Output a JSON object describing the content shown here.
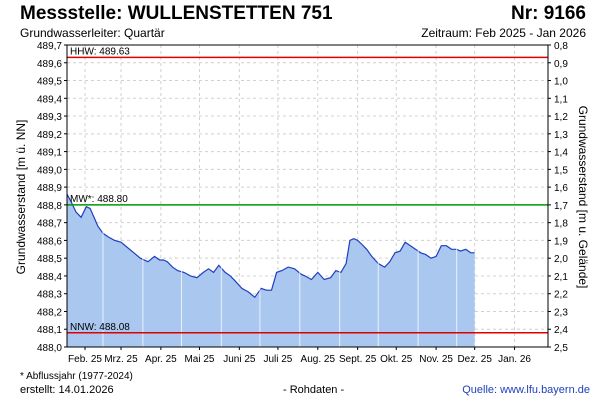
{
  "header": {
    "title": "Messstelle: WULLENSTETTEN 751",
    "number": "Nr: 9166",
    "subtitle_left": "Grundwasserleiter: Quartär",
    "subtitle_right": "Zeitraum: Feb 2025 - Jan 2026"
  },
  "footer": {
    "note": "* Abflussjahr (1977-2024)",
    "created": "erstellt:  14.01.2026",
    "center": "- Rohdaten -",
    "source": "Quelle:  www.lfu.bayern.de"
  },
  "colors": {
    "fill": "#a9c7ef",
    "line": "#1f3fbf",
    "hhw": "#e00000",
    "mw": "#009900",
    "nnw": "#e00000",
    "grid": "#d0d0d0"
  },
  "chart_data": {
    "type": "area",
    "ylabel": "Grundwasserstand [m ü. NN]",
    "ylabel_right": "Grundwasserstand [m u. Gelände]",
    "ylim": [
      488.0,
      489.7
    ],
    "yticks": [
      "489,7",
      "489,6",
      "489,5",
      "489,4",
      "489,3",
      "489,2",
      "489,1",
      "489,0",
      "488,9",
      "488,8",
      "488,7",
      "488,6",
      "488,5",
      "488,4",
      "488,3",
      "488,2",
      "488,1",
      "488,0"
    ],
    "yticks_right": [
      "0,8",
      "0,9",
      "1,0",
      "1,1",
      "1,2",
      "1,3",
      "1,4",
      "1,5",
      "1,6",
      "1,7",
      "1,8",
      "1,9",
      "2,0",
      "2,1",
      "2,2",
      "2,3",
      "2,4",
      "2,5"
    ],
    "xlim": [
      "2025-02-01",
      "2026-02-10"
    ],
    "xticks": [
      {
        "label": "Feb. 25",
        "date": "2025-02-15"
      },
      {
        "label": "Mrz. 25",
        "date": "2025-03-15"
      },
      {
        "label": "Apr. 25",
        "date": "2025-04-15"
      },
      {
        "label": "Mai 25",
        "date": "2025-05-15"
      },
      {
        "label": "Juni 25",
        "date": "2025-06-15"
      },
      {
        "label": "Juli 25",
        "date": "2025-07-15"
      },
      {
        "label": "Aug. 25",
        "date": "2025-08-15"
      },
      {
        "label": "Sept. 25",
        "date": "2025-09-15"
      },
      {
        "label": "Okt. 25",
        "date": "2025-10-15"
      },
      {
        "label": "Nov. 25",
        "date": "2025-11-15"
      },
      {
        "label": "Dez. 25",
        "date": "2025-12-15"
      },
      {
        "label": "Jan. 26",
        "date": "2026-01-15"
      }
    ],
    "month_dividers": [
      "2025-03-01",
      "2025-04-01",
      "2025-05-01",
      "2025-06-01",
      "2025-07-01",
      "2025-08-01",
      "2025-09-01",
      "2025-10-01",
      "2025-11-01",
      "2025-12-01"
    ],
    "grid": true,
    "reference_lines": [
      {
        "label": "HHW: 489.63",
        "value": 489.63,
        "color": "#e00000"
      },
      {
        "label": "MW*: 488.80",
        "value": 488.8,
        "color": "#009900"
      },
      {
        "label": "NNW: 488.08",
        "value": 488.08,
        "color": "#e00000"
      }
    ],
    "series": [
      {
        "x": [
          "2025-02-01",
          "2025-02-04",
          "2025-02-08",
          "2025-02-12",
          "2025-02-16",
          "2025-02-19",
          "2025-02-22",
          "2025-02-25",
          "2025-03-01",
          "2025-03-05",
          "2025-03-10",
          "2025-03-15",
          "2025-03-20",
          "2025-03-25",
          "2025-03-30",
          "2025-04-05",
          "2025-04-10",
          "2025-04-14",
          "2025-04-17",
          "2025-04-20",
          "2025-04-24",
          "2025-04-28",
          "2025-05-03",
          "2025-05-08",
          "2025-05-13",
          "2025-05-18",
          "2025-05-22",
          "2025-05-26",
          "2025-05-30",
          "2025-06-04",
          "2025-06-08",
          "2025-06-12",
          "2025-06-17",
          "2025-06-22",
          "2025-06-27",
          "2025-07-02",
          "2025-07-06",
          "2025-07-10",
          "2025-07-14",
          "2025-07-18",
          "2025-07-23",
          "2025-07-28",
          "2025-08-02",
          "2025-08-05",
          "2025-08-10",
          "2025-08-15",
          "2025-08-20",
          "2025-08-25",
          "2025-08-29",
          "2025-09-02",
          "2025-09-06",
          "2025-09-09",
          "2025-09-12",
          "2025-09-15",
          "2025-09-18",
          "2025-09-22",
          "2025-09-26",
          "2025-10-01",
          "2025-10-06",
          "2025-10-10",
          "2025-10-14",
          "2025-10-18",
          "2025-10-22",
          "2025-10-26",
          "2025-10-30",
          "2025-11-03",
          "2025-11-07",
          "2025-11-11",
          "2025-11-15",
          "2025-11-19",
          "2025-11-23",
          "2025-11-27",
          "2025-12-01",
          "2025-12-04",
          "2025-12-08",
          "2025-12-12",
          "2025-12-15"
        ],
        "values": [
          488.86,
          488.82,
          488.76,
          488.73,
          488.79,
          488.78,
          488.73,
          488.68,
          488.64,
          488.62,
          488.6,
          488.59,
          488.56,
          488.53,
          488.5,
          488.48,
          488.51,
          488.49,
          488.49,
          488.48,
          488.45,
          488.43,
          488.42,
          488.4,
          488.39,
          488.42,
          488.44,
          488.42,
          488.46,
          488.42,
          488.4,
          488.37,
          488.33,
          488.31,
          488.28,
          488.33,
          488.32,
          488.32,
          488.42,
          488.43,
          488.45,
          488.44,
          488.41,
          488.4,
          488.38,
          488.42,
          488.38,
          488.39,
          488.43,
          488.42,
          488.47,
          488.6,
          488.61,
          488.6,
          488.58,
          488.55,
          488.51,
          488.47,
          488.45,
          488.48,
          488.53,
          488.54,
          488.59,
          488.57,
          488.55,
          488.53,
          488.52,
          488.5,
          488.51,
          488.57,
          488.57,
          488.55,
          488.55,
          488.54,
          488.55,
          488.53,
          488.53
        ]
      }
    ]
  }
}
